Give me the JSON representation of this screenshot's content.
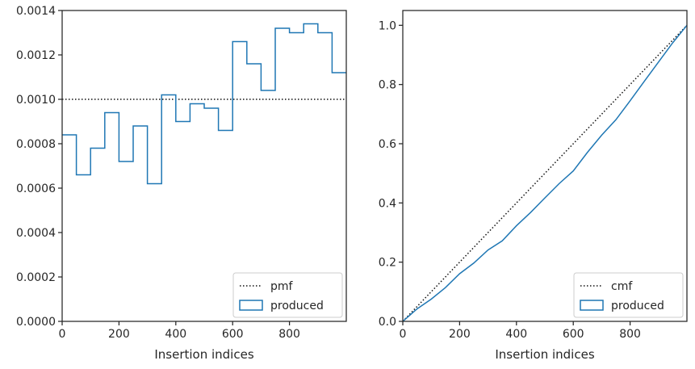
{
  "chart_data": [
    {
      "type": "line",
      "title": "",
      "xlabel": "Insertion indices",
      "ylabel": "",
      "xlim": [
        0,
        1000
      ],
      "ylim": [
        0,
        0.0014
      ],
      "xticks": [
        0,
        200,
        400,
        600,
        800
      ],
      "yticks": [
        0,
        0.0002,
        0.0004,
        0.0006,
        0.0008,
        0.001,
        0.0012,
        0.0014
      ],
      "ytick_labels": [
        "0.0000",
        "0.0002",
        "0.0004",
        "0.0006",
        "0.0008",
        "0.0010",
        "0.0012",
        "0.0014"
      ],
      "grid": false,
      "legend_position": "lower-right",
      "series": [
        {
          "name": "pmf",
          "style": "dotted",
          "color": "#111111",
          "x": [
            0,
            1000
          ],
          "y": [
            0.001,
            0.001
          ]
        },
        {
          "name": "produced",
          "style": "step",
          "color": "#1f77b4",
          "bin_edges": [
            0,
            50,
            100,
            150,
            200,
            250,
            300,
            350,
            400,
            450,
            500,
            550,
            600,
            650,
            700,
            750,
            800,
            850,
            900,
            950,
            1000
          ],
          "values": [
            0.00084,
            0.00066,
            0.00078,
            0.00094,
            0.00072,
            0.00088,
            0.00062,
            0.00102,
            0.0009,
            0.00098,
            0.00096,
            0.00086,
            0.00126,
            0.00116,
            0.00104,
            0.00132,
            0.0013,
            0.00134,
            0.0013,
            0.00112
          ]
        }
      ]
    },
    {
      "type": "line",
      "title": "",
      "xlabel": "Insertion indices",
      "ylabel": "",
      "xlim": [
        0,
        1000
      ],
      "ylim": [
        0,
        1.05
      ],
      "xticks": [
        0,
        200,
        400,
        600,
        800
      ],
      "yticks": [
        0,
        0.2,
        0.4,
        0.6,
        0.8,
        1.0
      ],
      "ytick_labels": [
        "0.0",
        "0.2",
        "0.4",
        "0.6",
        "0.8",
        "1.0"
      ],
      "grid": false,
      "legend_position": "lower-right",
      "series": [
        {
          "name": "cmf",
          "style": "dotted",
          "color": "#111111",
          "x": [
            0,
            1000
          ],
          "y": [
            0,
            1
          ]
        },
        {
          "name": "produced",
          "style": "line",
          "color": "#1f77b4",
          "x": [
            0,
            50,
            100,
            150,
            200,
            250,
            300,
            350,
            400,
            450,
            500,
            550,
            600,
            650,
            700,
            750,
            800,
            850,
            900,
            950,
            1000
          ],
          "y": [
            0,
            0.042,
            0.075,
            0.114,
            0.161,
            0.197,
            0.241,
            0.272,
            0.323,
            0.368,
            0.417,
            0.465,
            0.508,
            0.571,
            0.629,
            0.681,
            0.745,
            0.811,
            0.876,
            0.941,
            1.0
          ]
        }
      ]
    }
  ]
}
